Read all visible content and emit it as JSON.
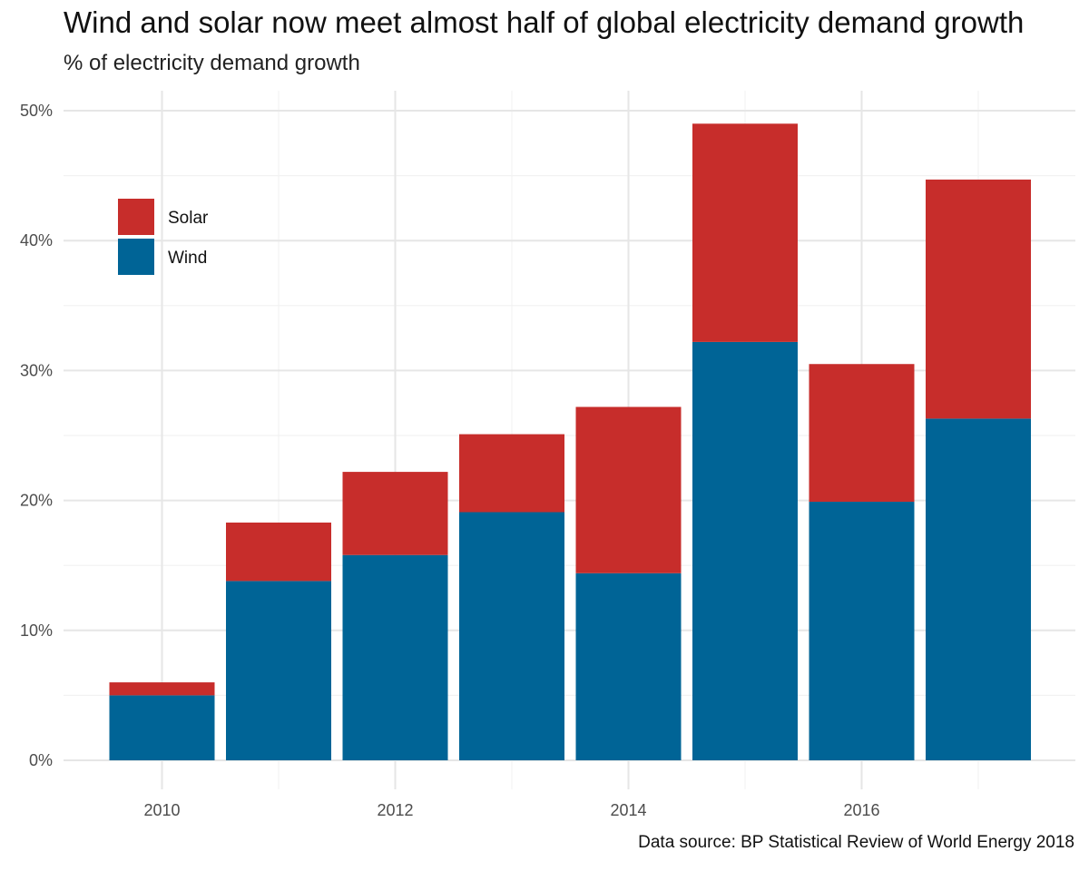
{
  "chart_data": {
    "type": "bar",
    "stacked": true,
    "title": "Wind and solar now meet almost half of global electricity demand growth",
    "subtitle": "% of electricity demand growth",
    "caption": "Data source: BP Statistical Review of World Energy 2018",
    "xlabel": "",
    "ylabel": "",
    "categories": [
      2010,
      2011,
      2012,
      2013,
      2014,
      2015,
      2016,
      2017
    ],
    "x_ticks": [
      "2010",
      "2012",
      "2014",
      "2016"
    ],
    "y_ticks": [
      "0%",
      "10%",
      "20%",
      "30%",
      "40%",
      "50%"
    ],
    "ylim": [
      0,
      50
    ],
    "grid": true,
    "legend_position": "top-left",
    "series": [
      {
        "name": "Wind",
        "color": "#006496",
        "values": [
          5.0,
          13.8,
          15.8,
          19.1,
          14.4,
          32.2,
          19.9,
          26.3
        ]
      },
      {
        "name": "Solar",
        "color": "#c72d2b",
        "values": [
          1.0,
          4.5,
          6.4,
          6.0,
          12.8,
          16.8,
          10.6,
          18.4
        ]
      }
    ],
    "legend": [
      {
        "name": "Solar",
        "color": "#c72d2b"
      },
      {
        "name": "Wind",
        "color": "#006496"
      }
    ]
  }
}
